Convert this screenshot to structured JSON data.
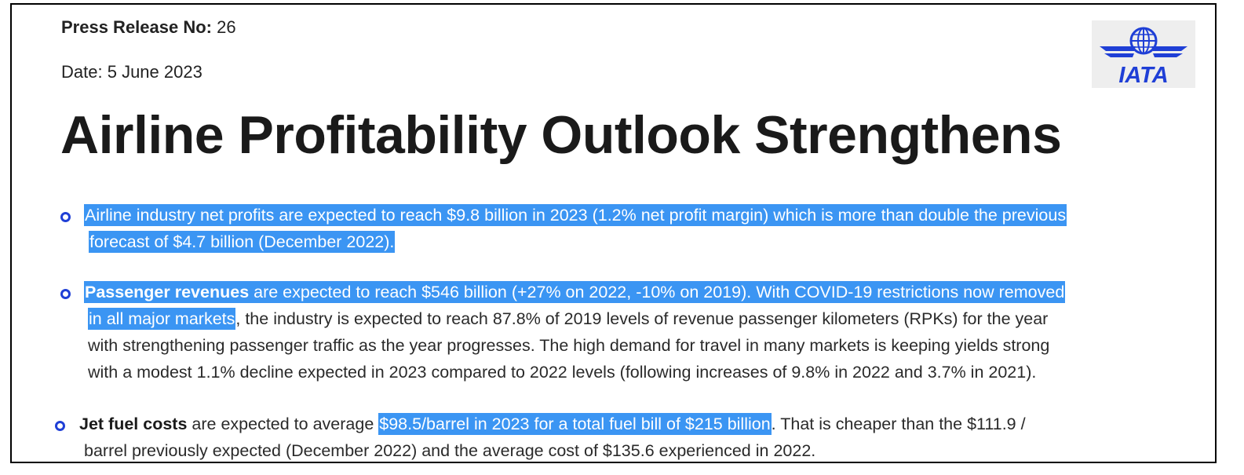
{
  "header": {
    "press_release_label": "Press Release No:",
    "press_release_number": "26",
    "date_label": "Date:",
    "date_value": "5 June 2023",
    "logo_text": "IATA"
  },
  "title": "Airline Profitability Outlook Strengthens",
  "bullets": [
    {
      "lines": [
        "Airline industry net profits are expected to reach $9.8 billion in 2023 (1.2% net profit margin) which is more than double the previous",
        "forecast of $4.7 billion (December 2022)."
      ]
    },
    {
      "bold_lead": "Passenger revenues",
      "line1_rest": " are expected to reach $546 billion (+27% on 2022, -10% on 2019). With COVID-19 restrictions now removed",
      "line2_highlight": "in all major markets",
      "line2_rest": ", the industry is expected to reach 87.8% of 2019 levels of revenue passenger kilometers (RPKs) for the year",
      "line3": "with strengthening passenger traffic as the year progresses. The high demand for travel in many markets is keeping yields strong",
      "line4": "with a modest 1.1% decline expected in 2023 compared to 2022 levels (following increases of 9.8% in 2022 and 3.7% in 2021)."
    },
    {
      "bold_lead": "Jet fuel costs",
      "line1_pre": " are expected to average ",
      "line1_highlight": "$98.5/barrel in 2023 for a total fuel bill of $215 billion",
      "line1_post": ". That is cheaper than the $111.9 /",
      "line2": "barrel previously expected (December 2022) and the average cost of $135.6 experienced in 2022."
    }
  ],
  "colors": {
    "highlight": "#3b95f3",
    "bullet": "#1f3fd6",
    "logo_blue": "#1f3fd6",
    "logo_bg": "#eeeeee"
  }
}
